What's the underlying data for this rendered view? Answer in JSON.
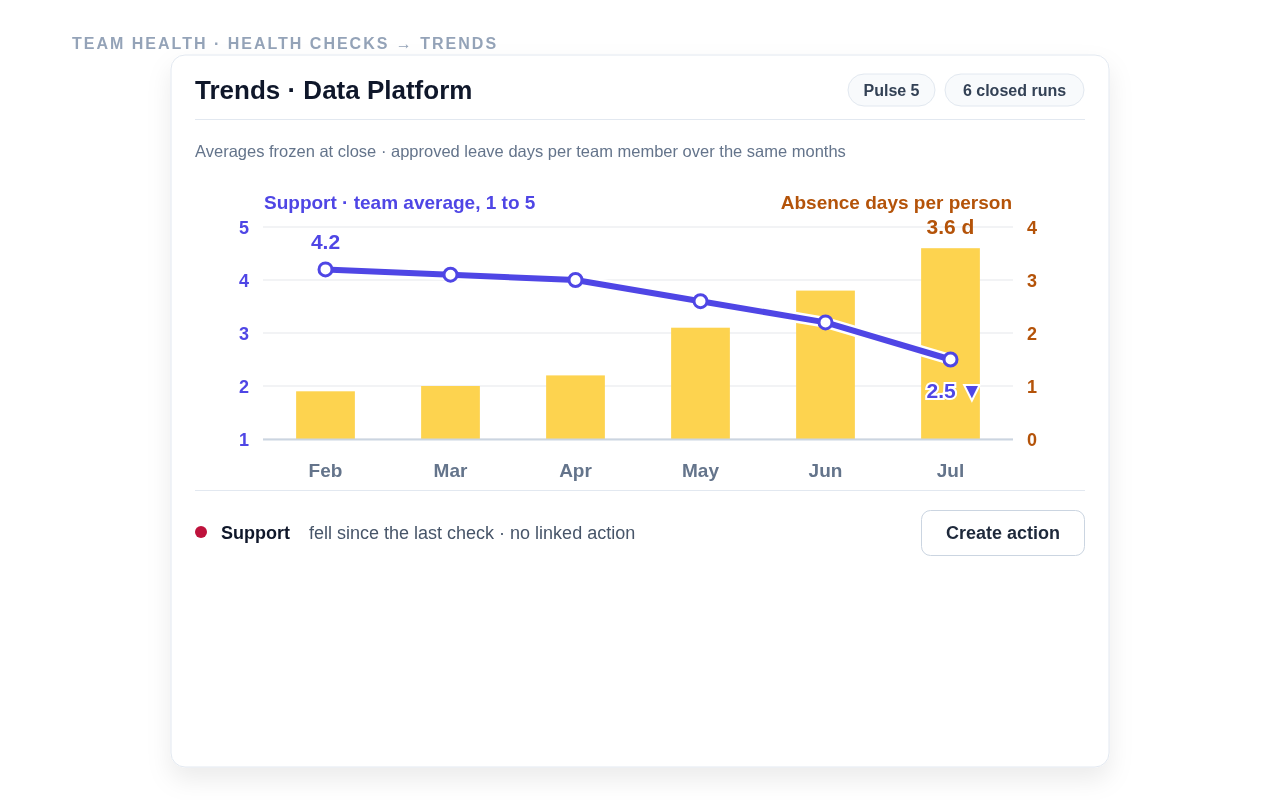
{
  "chart_data": {
    "type": "bar",
    "title": "Trends · Data Platform",
    "subtitle": "Averages frozen at close · approved leave days per team member over the same months",
    "ylabel": "Support · team average, 1 to 5",
    "y2label": "Absence days per person",
    "categories": [
      "Feb",
      "Mar",
      "Apr",
      "May",
      "Jun",
      "Jul"
    ],
    "series": [
      {
        "axis": "y2",
        "color": "#fdd34f",
        "values": [
          0.9,
          1.0,
          1.2,
          2.1,
          2.8,
          3.6
        ],
        "value_labels": [
          null,
          null,
          null,
          null,
          null,
          "3.6 d"
        ]
      },
      {
        "type": "line",
        "axis": "y",
        "color": "#4f46e5",
        "values": [
          4.2,
          4.1,
          4.0,
          3.6,
          3.2,
          2.5
        ],
        "value_labels": [
          "4.2",
          null,
          null,
          null,
          null,
          "2.5 ▼"
        ]
      }
    ],
    "ylim": [
      1,
      5
    ],
    "yticks": [
      1,
      2,
      3,
      4,
      5
    ],
    "y2lim": [
      0,
      4
    ],
    "y2ticks": [
      0,
      1,
      2,
      3,
      4
    ],
    "grid": "y",
    "marker": "circle",
    "line_style": "solid",
    "annotations": [
      "TEAM HEALTH · HEALTH CHECKS → TRENDS",
      "Pulse 5",
      "6 closed runs",
      "Support",
      "fell since the last check · no linked action",
      "Create action"
    ]
  }
}
